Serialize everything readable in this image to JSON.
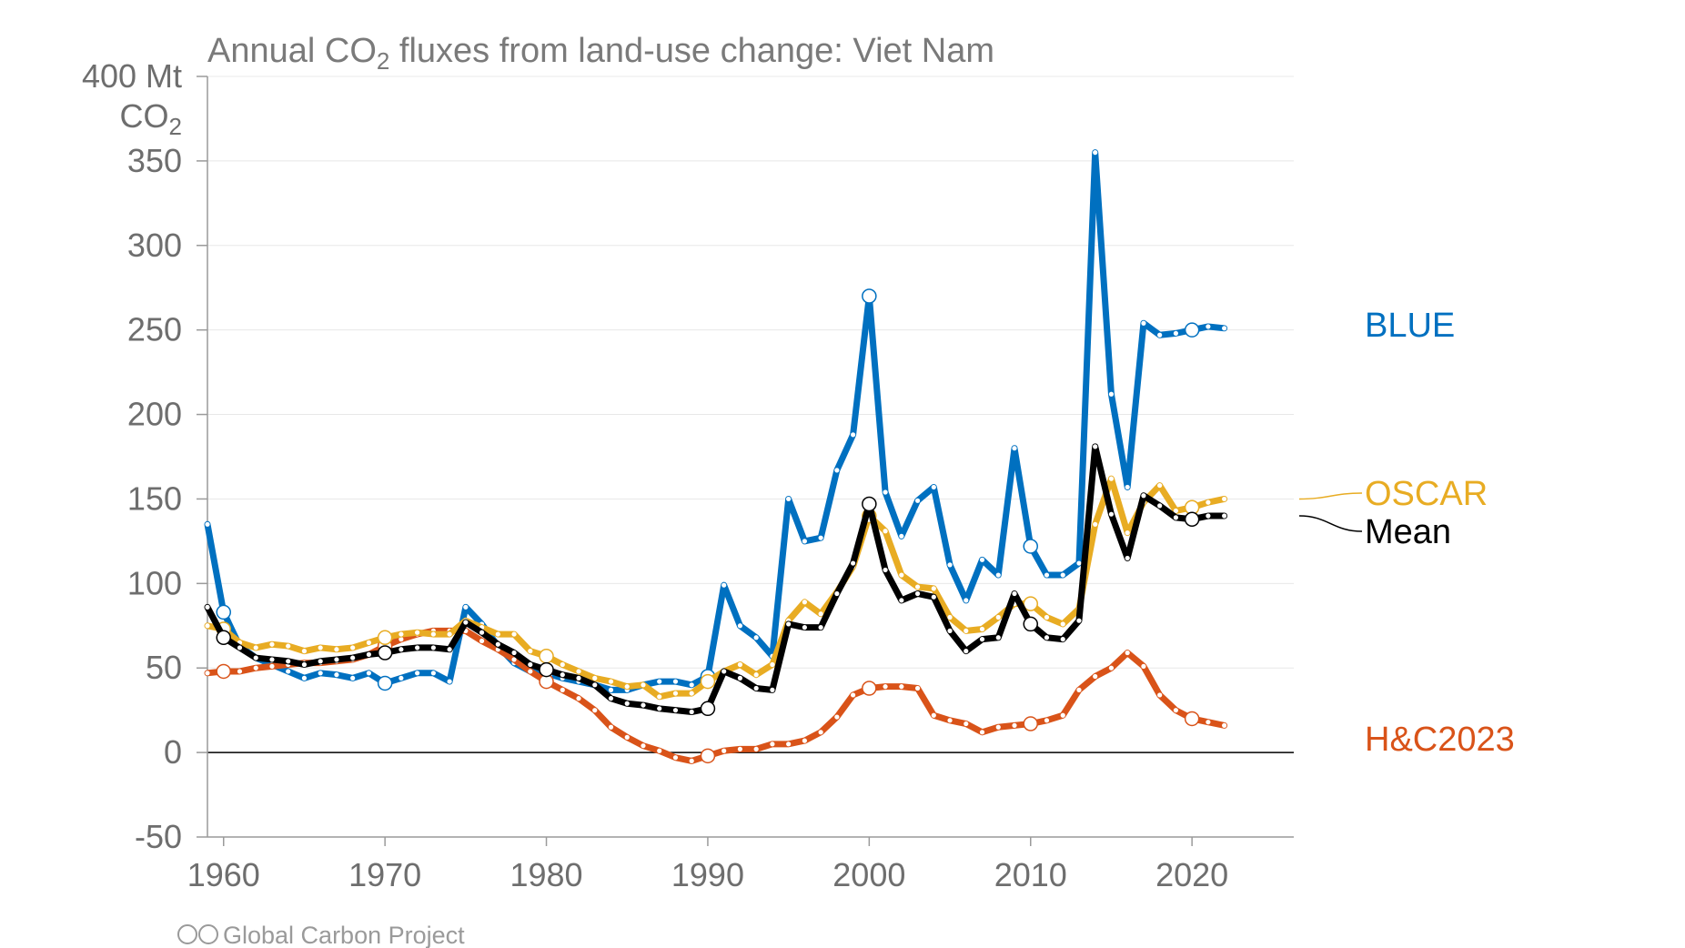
{
  "chart_data": {
    "type": "line",
    "title": "Annual CO₂ fluxes from land-use change: Viet Nam",
    "title_parts": {
      "pre": "Annual CO",
      "sub": "2",
      "post": " fluxes from land-use change: Viet Nam"
    },
    "ylabel_parts": {
      "line1": "400 Mt",
      "line2": "CO",
      "sub": "2"
    },
    "credit": "Global Carbon Project",
    "xlim": [
      1959,
      2026
    ],
    "ylim": [
      -50,
      400
    ],
    "x_ticks": [
      1960,
      1970,
      1980,
      1990,
      2000,
      2010,
      2020
    ],
    "y_ticks": [
      -50,
      0,
      50,
      100,
      150,
      200,
      250,
      300,
      350
    ],
    "grid": true,
    "x": [
      1959,
      1960,
      1961,
      1962,
      1963,
      1964,
      1965,
      1966,
      1967,
      1968,
      1969,
      1970,
      1971,
      1972,
      1973,
      1974,
      1975,
      1976,
      1977,
      1978,
      1979,
      1980,
      1981,
      1982,
      1983,
      1984,
      1985,
      1986,
      1987,
      1988,
      1989,
      1990,
      1991,
      1992,
      1993,
      1994,
      1995,
      1996,
      1997,
      1998,
      1999,
      2000,
      2001,
      2002,
      2003,
      2004,
      2005,
      2006,
      2007,
      2008,
      2009,
      2010,
      2011,
      2012,
      2013,
      2014,
      2015,
      2016,
      2017,
      2018,
      2019,
      2020,
      2021,
      2022
    ],
    "series": [
      {
        "name": "BLUE",
        "color": "#0070c0",
        "values": [
          135,
          83,
          63,
          56,
          52,
          48,
          44,
          47,
          46,
          44,
          47,
          41,
          44,
          47,
          47,
          42,
          86,
          76,
          63,
          53,
          48,
          47,
          44,
          42,
          40,
          37,
          37,
          40,
          42,
          42,
          40,
          45,
          99,
          75,
          68,
          57,
          150,
          125,
          127,
          167,
          188,
          270,
          154,
          128,
          149,
          157,
          111,
          90,
          114,
          105,
          180,
          122,
          105,
          105,
          112,
          355,
          212,
          157,
          254,
          247,
          248,
          250,
          252,
          251
        ]
      },
      {
        "name": "OSCAR",
        "color": "#e8ac23",
        "values": [
          75,
          73,
          65,
          62,
          64,
          63,
          60,
          62,
          61,
          62,
          65,
          68,
          70,
          71,
          70,
          70,
          78,
          74,
          70,
          70,
          60,
          57,
          52,
          48,
          44,
          42,
          39,
          40,
          33,
          35,
          35,
          42,
          48,
          52,
          46,
          52,
          78,
          89,
          82,
          95,
          110,
          140,
          131,
          105,
          98,
          97,
          80,
          72,
          73,
          80,
          88,
          88,
          80,
          76,
          85,
          135,
          162,
          130,
          148,
          158,
          143,
          145,
          148,
          150
        ]
      },
      {
        "name": "Mean",
        "color": "#000000",
        "values": [
          86,
          68,
          62,
          56,
          55,
          54,
          52,
          54,
          55,
          56,
          58,
          59,
          61,
          62,
          62,
          61,
          77,
          71,
          64,
          59,
          52,
          49,
          46,
          44,
          40,
          32,
          29,
          28,
          26,
          25,
          24,
          26,
          48,
          44,
          38,
          37,
          76,
          74,
          74,
          94,
          112,
          147,
          108,
          90,
          94,
          92,
          72,
          60,
          67,
          68,
          94,
          76,
          68,
          67,
          78,
          181,
          141,
          115,
          152,
          146,
          139,
          138,
          140,
          140
        ]
      },
      {
        "name": "H&C2023",
        "color": "#d95319",
        "values": [
          47,
          48,
          48,
          50,
          51,
          52,
          53,
          53,
          54,
          55,
          58,
          63,
          67,
          70,
          72,
          72,
          72,
          66,
          61,
          55,
          48,
          42,
          37,
          32,
          25,
          15,
          9,
          4,
          1,
          -3,
          -5,
          -2,
          1,
          2,
          2,
          5,
          5,
          7,
          12,
          21,
          34,
          38,
          39,
          39,
          38,
          22,
          19,
          17,
          12,
          15,
          16,
          17,
          19,
          22,
          37,
          45,
          50,
          59,
          51,
          34,
          25,
          20,
          18,
          16
        ]
      }
    ]
  }
}
